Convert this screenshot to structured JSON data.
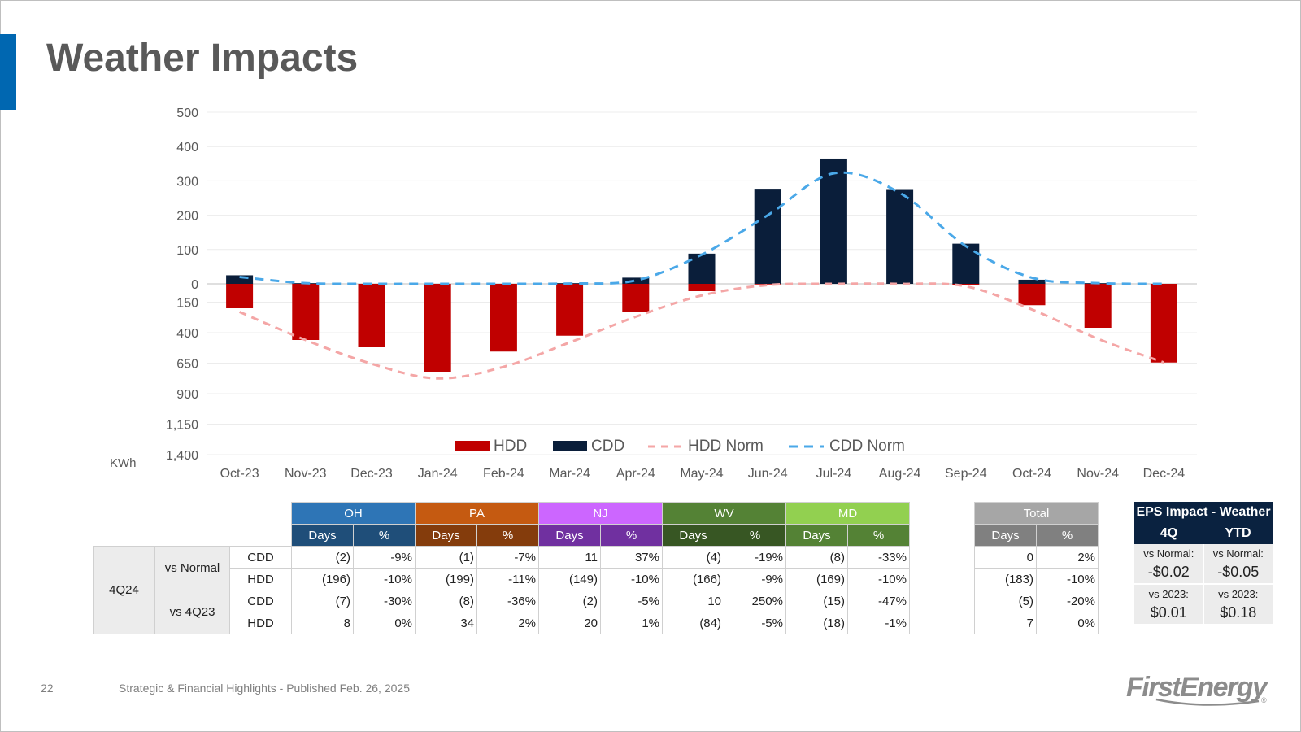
{
  "title": "Weather Impacts",
  "footer": {
    "page_number": "22",
    "text": "Strategic & Financial Highlights - Published Feb. 26, 2025",
    "logo": "FirstEnergy",
    "logo_mark": "®"
  },
  "chart_data": {
    "type": "bar",
    "title": "",
    "unit_label": "KWh",
    "categories": [
      "Oct-23",
      "Nov-23",
      "Dec-23",
      "Jan-24",
      "Feb-24",
      "Mar-24",
      "Apr-24",
      "May-24",
      "Jun-24",
      "Jul-24",
      "Aug-24",
      "Sep-24",
      "Oct-24",
      "Nov-24",
      "Dec-24"
    ],
    "cdd_axis": {
      "ticks": [
        "500",
        "400",
        "300",
        "200",
        "100",
        "0"
      ],
      "range": [
        0,
        500
      ]
    },
    "hdd_axis": {
      "ticks": [
        "150",
        "400",
        "650",
        "900",
        "1,150",
        "1,400"
      ],
      "range": [
        0,
        1400
      ],
      "inverted": true
    },
    "series": [
      {
        "name": "HDD",
        "kind": "bar",
        "axis": "hdd",
        "color": "#c00000",
        "values": [
          200,
          460,
          520,
          720,
          555,
          425,
          230,
          60,
          5,
          0,
          0,
          10,
          175,
          360,
          645
        ]
      },
      {
        "name": "CDD",
        "kind": "bar",
        "axis": "cdd",
        "color": "#0a1e3a",
        "values": [
          25,
          2,
          0,
          0,
          0,
          2,
          18,
          88,
          277,
          365,
          276,
          117,
          12,
          2,
          0
        ]
      },
      {
        "name": "HDD Norm",
        "kind": "line",
        "axis": "hdd",
        "color": "#f4a6a6",
        "values": [
          230,
          460,
          655,
          775,
          680,
          480,
          270,
          95,
          10,
          0,
          0,
          20,
          210,
          450,
          645
        ]
      },
      {
        "name": "CDD Norm",
        "kind": "line",
        "axis": "cdd",
        "color": "#4aa8e8",
        "values": [
          20,
          2,
          0,
          0,
          0,
          1,
          10,
          85,
          200,
          322,
          265,
          110,
          18,
          2,
          0
        ]
      }
    ],
    "legend": {
      "position": "bottom",
      "entries": [
        "HDD",
        "CDD",
        "HDD Norm",
        "CDD Norm"
      ]
    }
  },
  "weather_table": {
    "regions": [
      {
        "name": "OH",
        "color": "#2e75b6",
        "sub_color": "#1f4e79"
      },
      {
        "name": "PA",
        "color": "#c55a11",
        "sub_color": "#843c0c"
      },
      {
        "name": "NJ",
        "color": "#cc66ff",
        "sub_color": "#7030a0"
      },
      {
        "name": "WV",
        "color": "#548235",
        "sub_color": "#375623"
      },
      {
        "name": "MD",
        "color": "#92d050",
        "sub_color": "#548235"
      }
    ],
    "days_label": "Days",
    "pct_label": "%",
    "period": "4Q24",
    "groups": [
      {
        "label": "vs Normal",
        "rows": [
          {
            "metric": "CDD",
            "values": [
              "(2)",
              "-9%",
              "(1)",
              "-7%",
              "11",
              "37%",
              "(4)",
              "-19%",
              "(8)",
              "-33%"
            ]
          },
          {
            "metric": "HDD",
            "values": [
              "(196)",
              "-10%",
              "(199)",
              "-11%",
              "(149)",
              "-10%",
              "(166)",
              "-9%",
              "(169)",
              "-10%"
            ]
          }
        ]
      },
      {
        "label": "vs 4Q23",
        "rows": [
          {
            "metric": "CDD",
            "values": [
              "(7)",
              "-30%",
              "(8)",
              "-36%",
              "(2)",
              "-5%",
              "10",
              "250%",
              "(15)",
              "-47%"
            ]
          },
          {
            "metric": "HDD",
            "values": [
              "8",
              "0%",
              "34",
              "2%",
              "20",
              "1%",
              "(84)",
              "-5%",
              "(18)",
              "-1%"
            ]
          }
        ]
      }
    ]
  },
  "total_table": {
    "title": "Total",
    "color": "#a6a6a6",
    "sub_color": "#808080",
    "rows": [
      {
        "values": [
          "0",
          "2%"
        ]
      },
      {
        "values": [
          "(183)",
          "-10%"
        ]
      },
      {
        "values": [
          "(5)",
          "-20%"
        ]
      },
      {
        "values": [
          "7",
          "0%"
        ]
      }
    ]
  },
  "eps_impact": {
    "title": "EPS Impact - Weather",
    "col_4q": "4Q",
    "col_ytd": "YTD",
    "vs_normal_label": "vs Normal:",
    "vs_2023_label": "vs 2023:",
    "q4_vs_normal": "-$0.02",
    "ytd_vs_normal": "-$0.05",
    "q4_vs_2023": "$0.01",
    "ytd_vs_2023": "$0.18"
  }
}
